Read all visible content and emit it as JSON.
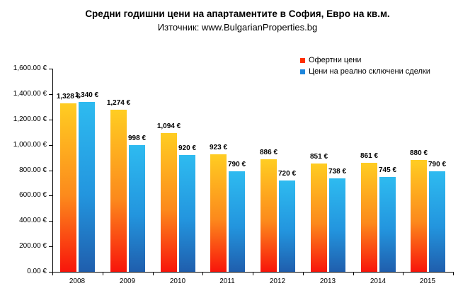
{
  "header": {
    "title": "Средни годишни цени на апартаментите в София, Евро на кв.м.",
    "subtitle": "Източник: www.BulgarianProperties.bg"
  },
  "chart_data": {
    "type": "bar",
    "title": "Средни годишни цени на апартаментите в София, Евро на кв.м.",
    "subtitle": "Източник: www.BulgarianProperties.bg",
    "categories": [
      "2008",
      "2009",
      "2010",
      "2011",
      "2012",
      "2013",
      "2014",
      "2015"
    ],
    "series": [
      {
        "name": "Офертни цени",
        "values": [
          1328,
          1274,
          1094,
          923,
          886,
          851,
          861,
          880
        ],
        "labels": [
          "1,328 €",
          "1,274 €",
          "1,094 €",
          "923 €",
          "886 €",
          "851 €",
          "861 €",
          "880 €"
        ],
        "gradient_top": "#FFCD22",
        "gradient_mid": "#FC8A1C",
        "gradient_bottom": "#F8150B",
        "legend_marker_color": "#FF3000"
      },
      {
        "name": "Цени на реално сключени сделки",
        "values": [
          1340,
          998,
          920,
          790,
          720,
          738,
          745,
          790
        ],
        "labels": [
          "1,340 €",
          "998 €",
          "920 €",
          "790 €",
          "720 €",
          "738 €",
          "745 €",
          "790 €"
        ],
        "gradient_top": "#2EBBF0",
        "gradient_mid": "#2395DE",
        "gradient_bottom": "#1F5EAD",
        "legend_marker_color": "#1E86DC"
      }
    ],
    "ylim": [
      0,
      1600
    ],
    "y_ticks": [
      0,
      200,
      400,
      600,
      800,
      1000,
      1200,
      1400,
      1600
    ],
    "y_tick_labels": [
      "0.00 €",
      "200.00 €",
      "400.00 €",
      "600.00 €",
      "800.00 €",
      "1,000.00 €",
      "1,200.00 €",
      "1,400.00 €",
      "1,600.00 €"
    ],
    "grid": false,
    "legend_position": "top-right",
    "currency_suffix": "€"
  }
}
